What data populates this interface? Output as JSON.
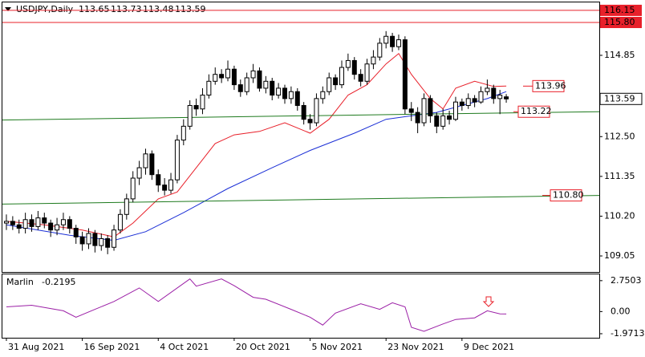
{
  "chart_data": {
    "type": "candlestick",
    "title": "USDJPY,Daily",
    "last_bar": {
      "open": 113.65,
      "high": 113.73,
      "low": 113.48,
      "close": 113.59
    },
    "ylim": [
      108.61,
      116.38
    ],
    "yticks": [
      114.85,
      {
        "value": 112.5,
        "label": "112.50"
      },
      111.35,
      {
        "value": 110.2,
        "label": "110.20"
      },
      109.05
    ],
    "xlim": [
      -0.63,
      93.7
    ],
    "xticks": [
      {
        "value": 0,
        "label": "31 Aug 2021"
      },
      {
        "value": 12,
        "label": "16 Sep 2021"
      },
      {
        "value": 24,
        "label": "4 Oct 2021"
      },
      {
        "value": 36,
        "label": "20 Oct 2021"
      },
      {
        "value": 48,
        "label": "5 Nov 2021"
      },
      {
        "value": 60,
        "label": "23 Nov 2021"
      },
      {
        "value": 72,
        "label": "9 Dec 2021"
      }
    ],
    "open": [
      110.0,
      110.05,
      109.95,
      109.85,
      110.1,
      109.9,
      110.15,
      110.0,
      109.8,
      109.95,
      110.1,
      109.85,
      109.6,
      109.4,
      109.7,
      109.35,
      109.55,
      109.3,
      109.8,
      110.25,
      110.7,
      111.3,
      111.6,
      112.0,
      111.4,
      111.1,
      110.95,
      111.25,
      112.4,
      112.8,
      113.4,
      113.3,
      113.7,
      114.1,
      114.3,
      114.2,
      114.45,
      114.0,
      113.8,
      114.2,
      114.4,
      113.9,
      114.1,
      113.7,
      113.9,
      113.6,
      113.8,
      113.4,
      113.0,
      112.9,
      113.6,
      113.8,
      114.2,
      114.0,
      114.5,
      114.7,
      114.3,
      114.1,
      114.6,
      114.8,
      115.2,
      115.4,
      115.1,
      115.3,
      113.3,
      113.2,
      112.9,
      113.6,
      113.1,
      112.8,
      113.1,
      113.0,
      113.5,
      113.4,
      113.6,
      113.5,
      113.8,
      113.9,
      113.6,
      113.65
    ],
    "high": [
      110.25,
      110.2,
      110.1,
      110.3,
      110.25,
      110.35,
      110.3,
      110.1,
      110.15,
      110.3,
      110.2,
      109.95,
      109.75,
      109.85,
      109.8,
      109.7,
      109.65,
      109.95,
      110.4,
      110.85,
      111.5,
      111.8,
      112.15,
      112.1,
      111.55,
      111.3,
      111.45,
      112.55,
      113.0,
      113.55,
      113.6,
      113.9,
      114.3,
      114.5,
      114.45,
      114.7,
      114.55,
      114.15,
      114.35,
      114.6,
      114.5,
      114.25,
      114.2,
      114.05,
      114.0,
      113.95,
      113.9,
      113.5,
      113.15,
      113.75,
      113.95,
      114.35,
      114.3,
      114.7,
      114.9,
      114.8,
      114.45,
      114.75,
      115.0,
      115.35,
      115.55,
      115.5,
      115.45,
      115.4,
      113.5,
      113.35,
      113.75,
      113.7,
      113.2,
      113.3,
      113.25,
      113.65,
      113.6,
      113.75,
      113.7,
      113.95,
      114.15,
      114.0,
      113.85,
      113.73
    ],
    "low": [
      109.8,
      109.8,
      109.7,
      109.7,
      109.75,
      109.8,
      109.85,
      109.6,
      109.65,
      109.8,
      109.7,
      109.4,
      109.2,
      109.25,
      109.15,
      109.2,
      109.1,
      109.2,
      109.7,
      110.1,
      110.6,
      111.1,
      111.4,
      111.25,
      110.9,
      110.8,
      110.85,
      111.15,
      112.25,
      112.7,
      113.1,
      113.15,
      113.6,
      114.0,
      114.05,
      114.1,
      113.85,
      113.65,
      113.7,
      114.05,
      113.8,
      113.75,
      113.55,
      113.6,
      113.45,
      113.45,
      113.25,
      112.85,
      112.7,
      112.8,
      113.45,
      113.7,
      113.85,
      113.9,
      114.4,
      114.15,
      113.95,
      114.0,
      114.45,
      114.7,
      115.05,
      114.95,
      115.0,
      113.15,
      112.95,
      112.6,
      112.8,
      112.9,
      112.6,
      112.7,
      112.85,
      112.95,
      113.25,
      113.3,
      113.35,
      113.45,
      113.7,
      113.45,
      113.15,
      113.48
    ],
    "close": [
      110.05,
      109.95,
      109.85,
      110.1,
      109.9,
      110.15,
      110.0,
      109.8,
      109.95,
      110.1,
      109.85,
      109.6,
      109.4,
      109.7,
      109.35,
      109.55,
      109.3,
      109.8,
      110.25,
      110.7,
      111.3,
      111.6,
      112.0,
      111.4,
      111.1,
      110.95,
      111.25,
      112.4,
      112.8,
      113.4,
      113.3,
      113.7,
      114.1,
      114.3,
      114.2,
      114.45,
      114.0,
      113.8,
      114.2,
      114.4,
      113.9,
      114.1,
      113.7,
      113.9,
      113.6,
      113.8,
      113.4,
      113.0,
      112.9,
      113.6,
      113.8,
      114.2,
      114.0,
      114.5,
      114.7,
      114.3,
      114.1,
      114.6,
      114.8,
      115.2,
      115.4,
      115.1,
      115.3,
      113.3,
      113.2,
      112.9,
      113.6,
      113.1,
      112.8,
      113.1,
      113.0,
      113.5,
      113.4,
      113.6,
      113.5,
      113.8,
      113.9,
      113.6,
      113.7,
      113.59
    ],
    "series": [
      {
        "color": "#e8202a",
        "x": [
          0,
          6,
          12,
          17,
          20,
          24,
          27,
          30,
          33,
          36,
          40,
          44,
          48,
          51,
          54,
          57,
          60,
          62,
          64,
          67,
          69,
          71,
          74,
          77,
          79
        ],
        "values": [
          110.05,
          109.95,
          109.8,
          109.6,
          110.0,
          110.7,
          110.9,
          111.6,
          112.3,
          112.55,
          112.65,
          112.9,
          112.6,
          113.0,
          113.7,
          114.0,
          114.6,
          114.9,
          114.3,
          113.6,
          113.3,
          113.9,
          114.1,
          113.95,
          113.96
        ]
      },
      {
        "color": "#1b2fd6",
        "x": [
          0,
          10,
          17,
          22,
          28,
          35,
          42,
          48,
          55,
          60,
          64,
          68,
          72,
          76,
          79
        ],
        "values": [
          109.95,
          109.65,
          109.5,
          109.75,
          110.3,
          111.0,
          111.6,
          112.1,
          112.6,
          113.0,
          113.1,
          113.2,
          113.4,
          113.6,
          113.8
        ]
      },
      {
        "color": "#1e7a1e",
        "x": [
          -0.63,
          93.7
        ],
        "values": [
          112.98,
          113.22
        ]
      },
      {
        "color": "#1e7a1e",
        "x": [
          -0.63,
          93.7
        ],
        "values": [
          110.55,
          110.8
        ]
      }
    ],
    "price_levels": [
      116.15,
      {
        "value": 115.8,
        "label": "115.80"
      }
    ],
    "level_color": "#e8202a",
    "last_price": 113.59,
    "annotations": [
      113.96,
      113.22,
      {
        "value": 110.8,
        "label": "110.80"
      }
    ],
    "indicator": {
      "name": "Marlin",
      "value": -0.2195,
      "color": "#9b1fa6",
      "ylim": [
        -2.33,
        3.31
      ],
      "yticks": [
        2.7503,
        {
          "value": 0,
          "label": "0.00"
        },
        -1.9713
      ],
      "x": [
        0,
        4,
        9,
        11,
        14,
        17,
        21,
        24,
        29,
        30,
        34,
        36,
        39,
        41,
        45,
        48,
        50,
        52,
        56,
        59,
        61,
        63,
        64,
        66,
        69,
        71,
        74,
        76,
        78,
        79
      ],
      "values": [
        0.42,
        0.56,
        0.07,
        -0.5,
        0.2,
        0.9,
        2.1,
        0.9,
        2.9,
        2.26,
        2.9,
        2.3,
        1.27,
        1.1,
        0.2,
        -0.5,
        -1.2,
        -0.14,
        0.7,
        0.2,
        0.78,
        0.42,
        -1.4,
        -1.76,
        -1.1,
        -0.7,
        -0.56,
        0.07,
        -0.2,
        -0.2195
      ]
    }
  }
}
